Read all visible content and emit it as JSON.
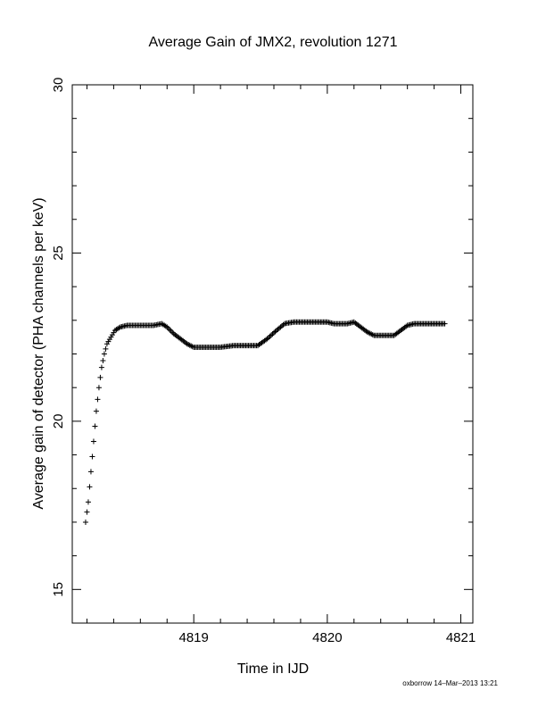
{
  "chart_data": {
    "type": "scatter",
    "title": "Average Gain of JMX2, revolution 1271",
    "xlabel": "Time in IJD",
    "ylabel": "Average gain of detector (PHA channels per keV)",
    "xlim": [
      4818.09,
      4821.09
    ],
    "ylim": [
      14,
      30
    ],
    "xticks": [
      4819,
      4820,
      4821
    ],
    "xtick_labels": [
      "4819",
      "4820",
      "4821"
    ],
    "yticks": [
      15,
      20,
      25,
      30
    ],
    "ytick_labels": [
      "15",
      "20",
      "25",
      "30"
    ],
    "grid": false,
    "legend": "none",
    "marker": "plus",
    "series": [
      {
        "name": "",
        "color": "#000000",
        "x": [
          4818.19,
          4818.21,
          4818.23,
          4818.25,
          4818.27,
          4818.29,
          4818.31,
          4818.33,
          4818.35,
          4818.38,
          4818.41,
          4818.45,
          4818.5,
          4818.55,
          4818.6,
          4818.65,
          4818.7,
          4818.76,
          4818.8,
          4818.85,
          4818.9,
          4818.95,
          4819.0,
          4819.05,
          4819.1,
          4819.2,
          4819.3,
          4819.4,
          4819.48,
          4819.55,
          4819.62,
          4819.68,
          4819.75,
          4819.85,
          4819.95,
          4820.0,
          4820.05,
          4820.1,
          4820.15,
          4820.2,
          4820.25,
          4820.3,
          4820.35,
          4820.4,
          4820.45,
          4820.5,
          4820.55,
          4820.6,
          4820.65,
          4820.7,
          4820.8,
          4820.88
        ],
        "y": [
          17.0,
          17.6,
          18.5,
          19.4,
          20.3,
          21.0,
          21.6,
          22.0,
          22.3,
          22.5,
          22.7,
          22.8,
          22.85,
          22.85,
          22.85,
          22.85,
          22.85,
          22.9,
          22.8,
          22.6,
          22.45,
          22.3,
          22.2,
          22.2,
          22.2,
          22.2,
          22.25,
          22.25,
          22.25,
          22.45,
          22.7,
          22.9,
          22.95,
          22.95,
          22.95,
          22.95,
          22.9,
          22.9,
          22.9,
          22.95,
          22.8,
          22.65,
          22.55,
          22.55,
          22.55,
          22.55,
          22.7,
          22.85,
          22.9,
          22.9,
          22.9,
          22.9
        ]
      }
    ],
    "footer_text": "oxborrow 14–Mar–2013 13:21"
  }
}
